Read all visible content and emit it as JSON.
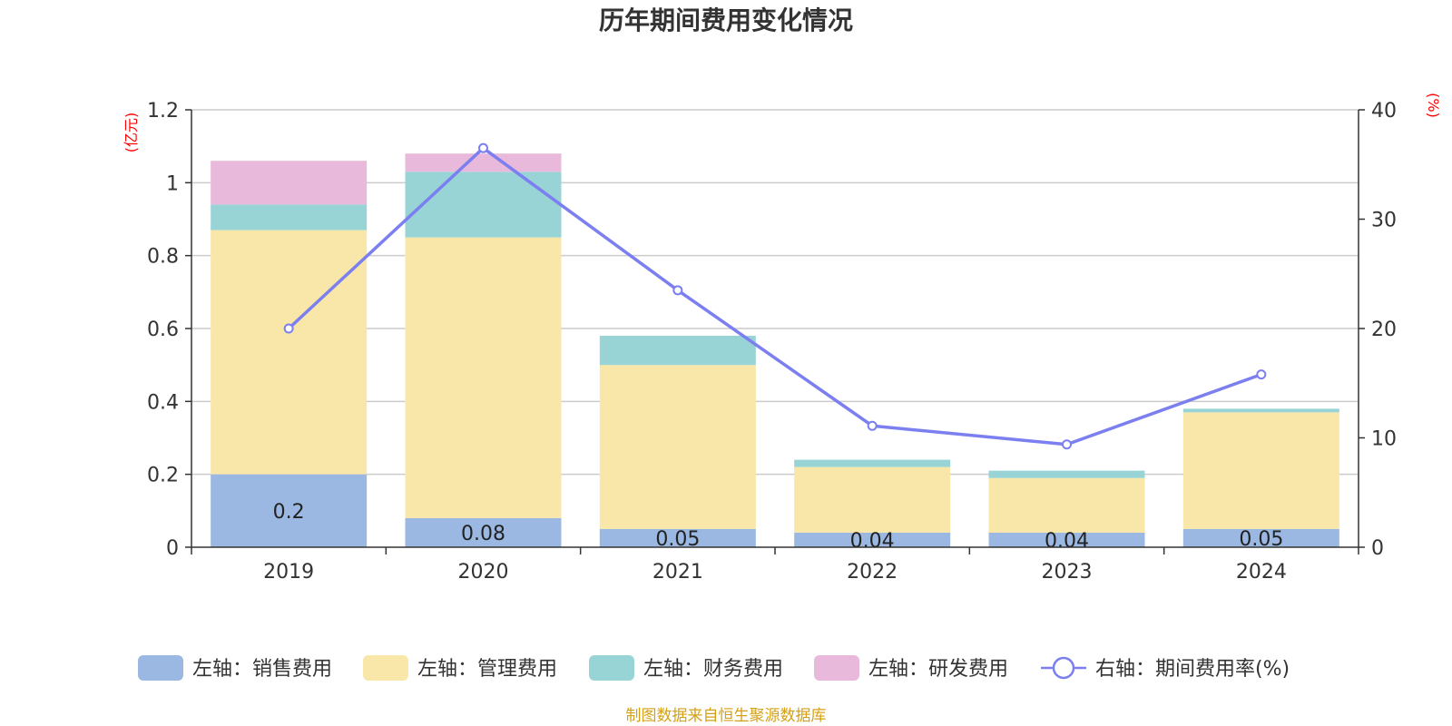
{
  "chart_data": {
    "type": "bar",
    "title": "历年期间费用变化情况",
    "categories": [
      "2019",
      "2020",
      "2021",
      "2022",
      "2023",
      "2024"
    ],
    "left_axis": {
      "unit": "(亿元)",
      "ylim": [
        0,
        1.2
      ],
      "ticks": [
        "0",
        "0.2",
        "0.4",
        "0.6",
        "0.8",
        "1",
        "1.2"
      ],
      "tick_values": [
        0,
        0.2,
        0.4,
        0.6,
        0.8,
        1.0,
        1.2
      ]
    },
    "right_axis": {
      "unit": "(%)",
      "ylim": [
        0,
        40
      ],
      "ticks": [
        "0",
        "10",
        "20",
        "30",
        "40"
      ],
      "tick_values": [
        0,
        10,
        20,
        30,
        40
      ]
    },
    "grid": true,
    "legend_position": "bottom",
    "series": [
      {
        "name": "左轴：销售费用",
        "type": "bar",
        "axis": "left",
        "color": "#9bb8e2",
        "values": [
          0.2,
          0.08,
          0.05,
          0.04,
          0.04,
          0.05
        ],
        "labels": [
          "0.2",
          "0.08",
          "0.05",
          "0.04",
          "0.04",
          "0.05"
        ]
      },
      {
        "name": "左轴：管理费用",
        "type": "bar",
        "axis": "left",
        "color": "#f8e7a8",
        "values": [
          0.67,
          0.77,
          0.45,
          0.18,
          0.15,
          0.32
        ]
      },
      {
        "name": "左轴：财务费用",
        "type": "bar",
        "axis": "left",
        "color": "#98d4d5",
        "values": [
          0.07,
          0.18,
          0.08,
          0.02,
          0.02,
          0.01
        ]
      },
      {
        "name": "左轴：研发费用",
        "type": "bar",
        "axis": "left",
        "color": "#e8b9da",
        "values": [
          0.12,
          0.05,
          0,
          0,
          0,
          0
        ]
      },
      {
        "name": "右轴：期间费用率(%)",
        "type": "line",
        "axis": "right",
        "color": "#7b7ff0",
        "values": [
          20.0,
          36.5,
          23.5,
          11.1,
          9.4,
          15.8
        ]
      }
    ],
    "source": "制图数据来自恒生聚源数据库"
  }
}
